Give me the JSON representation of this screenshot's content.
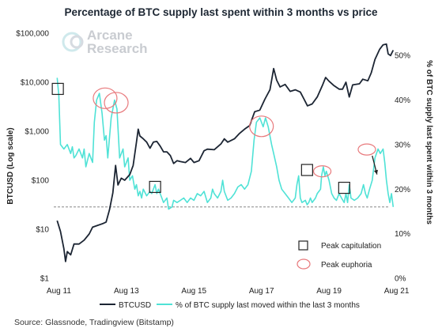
{
  "chart_data": {
    "type": "line",
    "title": "Percentage of BTC supply last spent within 3 months vs price",
    "brand": [
      "Arcane",
      "Research"
    ],
    "source": "Source: Glassnode, Tradingview (Bitstamp)",
    "y_left": {
      "label": "BTCUSD (Log scale)",
      "scale": "log",
      "range": [
        1,
        100000
      ],
      "ticks": [
        1,
        10,
        100,
        1000,
        10000,
        100000
      ],
      "tick_labels": [
        "$1",
        "$10",
        "$100",
        "$1,000",
        "$10,000",
        "$100,000"
      ]
    },
    "y_right": {
      "label": "% of BTC supply last spent within 3 months",
      "range": [
        0,
        55
      ],
      "ticks": [
        0,
        10,
        20,
        30,
        40,
        50
      ],
      "tick_labels": [
        "0%",
        "10%",
        "20%",
        "30%",
        "40%",
        "50%"
      ]
    },
    "x_axis": {
      "range": [
        2011.45,
        2021.4
      ],
      "ticks": [
        2011.6,
        2013.6,
        2015.6,
        2017.6,
        2019.6,
        2021.6
      ],
      "tick_labels": [
        "Aug 11",
        "Aug 13",
        "Aug 15",
        "Aug 17",
        "Aug 19",
        "Aug 21"
      ]
    },
    "grid": false,
    "legend_position": "bottom",
    "series": [
      {
        "name": "BTCUSD",
        "axis": "left",
        "color": "#1c2533",
        "points": [
          [
            2011.55,
            15
          ],
          [
            2011.65,
            9
          ],
          [
            2011.75,
            4
          ],
          [
            2011.8,
            2.2
          ],
          [
            2011.85,
            3.5
          ],
          [
            2011.95,
            3
          ],
          [
            2012.05,
            5
          ],
          [
            2012.2,
            5
          ],
          [
            2012.35,
            6
          ],
          [
            2012.5,
            8
          ],
          [
            2012.6,
            11
          ],
          [
            2012.75,
            12
          ],
          [
            2012.9,
            13
          ],
          [
            2013.0,
            14
          ],
          [
            2013.1,
            25
          ],
          [
            2013.2,
            55
          ],
          [
            2013.28,
            200
          ],
          [
            2013.35,
            80
          ],
          [
            2013.45,
            110
          ],
          [
            2013.55,
            100
          ],
          [
            2013.7,
            130
          ],
          [
            2013.8,
            200
          ],
          [
            2013.9,
            600
          ],
          [
            2013.95,
            1100
          ],
          [
            2014.0,
            800
          ],
          [
            2014.1,
            700
          ],
          [
            2014.2,
            600
          ],
          [
            2014.3,
            450
          ],
          [
            2014.4,
            600
          ],
          [
            2014.5,
            620
          ],
          [
            2014.6,
            500
          ],
          [
            2014.7,
            380
          ],
          [
            2014.8,
            380
          ],
          [
            2014.9,
            320
          ],
          [
            2015.0,
            220
          ],
          [
            2015.1,
            250
          ],
          [
            2015.2,
            240
          ],
          [
            2015.35,
            230
          ],
          [
            2015.5,
            280
          ],
          [
            2015.6,
            230
          ],
          [
            2015.75,
            250
          ],
          [
            2015.9,
            400
          ],
          [
            2016.0,
            430
          ],
          [
            2016.2,
            420
          ],
          [
            2016.4,
            550
          ],
          [
            2016.5,
            700
          ],
          [
            2016.6,
            600
          ],
          [
            2016.8,
            700
          ],
          [
            2016.95,
            900
          ],
          [
            2017.1,
            1100
          ],
          [
            2017.25,
            1300
          ],
          [
            2017.4,
            2500
          ],
          [
            2017.55,
            2700
          ],
          [
            2017.7,
            4500
          ],
          [
            2017.85,
            7000
          ],
          [
            2017.96,
            19000
          ],
          [
            2018.05,
            11000
          ],
          [
            2018.15,
            8000
          ],
          [
            2018.3,
            9000
          ],
          [
            2018.45,
            6500
          ],
          [
            2018.6,
            7000
          ],
          [
            2018.75,
            6300
          ],
          [
            2018.9,
            4000
          ],
          [
            2018.96,
            3300
          ],
          [
            2019.1,
            3600
          ],
          [
            2019.25,
            5000
          ],
          [
            2019.4,
            8500
          ],
          [
            2019.5,
            12500
          ],
          [
            2019.6,
            10500
          ],
          [
            2019.75,
            8500
          ],
          [
            2019.9,
            7200
          ],
          [
            2020.0,
            7200
          ],
          [
            2020.1,
            10000
          ],
          [
            2020.2,
            5000
          ],
          [
            2020.3,
            8800
          ],
          [
            2020.5,
            9300
          ],
          [
            2020.6,
            11500
          ],
          [
            2020.75,
            10700
          ],
          [
            2020.85,
            15500
          ],
          [
            2020.96,
            29000
          ],
          [
            2021.1,
            47000
          ],
          [
            2021.2,
            58000
          ],
          [
            2021.3,
            60000
          ],
          [
            2021.35,
            38000
          ],
          [
            2021.42,
            35000
          ],
          [
            2021.5,
            45000
          ]
        ]
      },
      {
        "name": "% of BTC supply last moved within the last 3 months",
        "axis": "right",
        "color": "#4fe2d6",
        "points": [
          [
            2011.55,
            45
          ],
          [
            2011.6,
            41
          ],
          [
            2011.65,
            30
          ],
          [
            2011.75,
            29
          ],
          [
            2011.85,
            30
          ],
          [
            2011.95,
            28
          ],
          [
            2012.0,
            29.5
          ],
          [
            2012.05,
            27
          ],
          [
            2012.1,
            27.5
          ],
          [
            2012.2,
            29
          ],
          [
            2012.3,
            27
          ],
          [
            2012.35,
            29
          ],
          [
            2012.4,
            25
          ],
          [
            2012.5,
            28
          ],
          [
            2012.6,
            26
          ],
          [
            2012.65,
            35
          ],
          [
            2012.72,
            40
          ],
          [
            2012.8,
            41.5
          ],
          [
            2012.88,
            37
          ],
          [
            2012.95,
            31
          ],
          [
            2013.0,
            32
          ],
          [
            2013.05,
            27
          ],
          [
            2013.15,
            36
          ],
          [
            2013.25,
            40
          ],
          [
            2013.32,
            38
          ],
          [
            2013.4,
            27
          ],
          [
            2013.5,
            29
          ],
          [
            2013.55,
            25
          ],
          [
            2013.65,
            27
          ],
          [
            2013.7,
            22
          ],
          [
            2013.78,
            23
          ],
          [
            2013.85,
            20
          ],
          [
            2013.9,
            21
          ],
          [
            2013.95,
            18.5
          ],
          [
            2014.0,
            19.5
          ],
          [
            2014.05,
            18
          ],
          [
            2014.1,
            20
          ],
          [
            2014.2,
            18.5
          ],
          [
            2014.3,
            19.5
          ],
          [
            2014.35,
            19
          ],
          [
            2014.45,
            21
          ],
          [
            2014.5,
            19
          ],
          [
            2014.55,
            20
          ],
          [
            2014.65,
            18
          ],
          [
            2014.7,
            17
          ],
          [
            2014.8,
            18
          ],
          [
            2014.85,
            15.5
          ],
          [
            2014.95,
            16
          ],
          [
            2015.0,
            17.5
          ],
          [
            2015.1,
            17
          ],
          [
            2015.2,
            17.5
          ],
          [
            2015.3,
            18
          ],
          [
            2015.4,
            17
          ],
          [
            2015.5,
            18
          ],
          [
            2015.6,
            17.5
          ],
          [
            2015.7,
            19
          ],
          [
            2015.8,
            18.5
          ],
          [
            2015.9,
            19.5
          ],
          [
            2016.0,
            17
          ],
          [
            2016.1,
            18
          ],
          [
            2016.15,
            20
          ],
          [
            2016.2,
            19
          ],
          [
            2016.3,
            18
          ],
          [
            2016.4,
            19.5
          ],
          [
            2016.45,
            22
          ],
          [
            2016.5,
            19.5
          ],
          [
            2016.6,
            17.5
          ],
          [
            2016.7,
            18
          ],
          [
            2016.8,
            19
          ],
          [
            2016.9,
            20.5
          ],
          [
            2017.0,
            21
          ],
          [
            2017.1,
            20
          ],
          [
            2017.2,
            21
          ],
          [
            2017.3,
            24
          ],
          [
            2017.38,
            31
          ],
          [
            2017.45,
            35
          ],
          [
            2017.55,
            36
          ],
          [
            2017.65,
            34
          ],
          [
            2017.72,
            36
          ],
          [
            2017.8,
            34
          ],
          [
            2017.9,
            30
          ],
          [
            2017.96,
            28
          ],
          [
            2018.05,
            25
          ],
          [
            2018.12,
            22
          ],
          [
            2018.2,
            20
          ],
          [
            2018.3,
            19
          ],
          [
            2018.4,
            18
          ],
          [
            2018.5,
            17
          ],
          [
            2018.6,
            18
          ],
          [
            2018.65,
            21
          ],
          [
            2018.7,
            23
          ],
          [
            2018.75,
            18
          ],
          [
            2018.8,
            17
          ],
          [
            2018.9,
            17.5
          ],
          [
            2018.95,
            16.5
          ],
          [
            2019.0,
            17
          ],
          [
            2019.05,
            18
          ],
          [
            2019.1,
            17
          ],
          [
            2019.15,
            17.5
          ],
          [
            2019.2,
            18
          ],
          [
            2019.25,
            19
          ],
          [
            2019.3,
            19.5
          ],
          [
            2019.35,
            20
          ],
          [
            2019.38,
            23
          ],
          [
            2019.43,
            25
          ],
          [
            2019.48,
            23
          ],
          [
            2019.52,
            24
          ],
          [
            2019.6,
            22
          ],
          [
            2019.68,
            19
          ],
          [
            2019.75,
            18
          ],
          [
            2019.82,
            17.5
          ],
          [
            2019.9,
            19
          ],
          [
            2019.97,
            18
          ],
          [
            2020.05,
            17
          ],
          [
            2020.1,
            19
          ],
          [
            2020.15,
            17
          ],
          [
            2020.2,
            21
          ],
          [
            2020.25,
            18
          ],
          [
            2020.35,
            17.5
          ],
          [
            2020.45,
            18
          ],
          [
            2020.55,
            19
          ],
          [
            2020.62,
            21
          ],
          [
            2020.68,
            19
          ],
          [
            2020.73,
            18
          ],
          [
            2020.8,
            20
          ],
          [
            2020.88,
            22
          ],
          [
            2020.96,
            27
          ],
          [
            2021.05,
            29
          ],
          [
            2021.12,
            28
          ],
          [
            2021.2,
            29
          ],
          [
            2021.25,
            26
          ],
          [
            2021.3,
            22
          ],
          [
            2021.35,
            19
          ],
          [
            2021.4,
            17
          ],
          [
            2021.45,
            19
          ],
          [
            2021.5,
            16
          ]
        ]
      }
    ],
    "reference_line": {
      "axis": "right",
      "value": 16,
      "style": "dashed"
    },
    "annotations": {
      "peak_capitulation": [
        [
          2011.57,
          42.5
        ],
        [
          2014.45,
          20.5
        ],
        [
          2018.95,
          24.3
        ],
        [
          2020.05,
          20.3
        ]
      ],
      "peak_euphoria": [
        [
          2012.97,
          40.4
        ],
        [
          2013.3,
          39.4
        ],
        [
          2017.6,
          34.1
        ],
        [
          2019.4,
          24
        ],
        [
          2020.72,
          28.9
        ]
      ],
      "arrow": {
        "from": [
          2020.88,
          27.5
        ],
        "to": [
          2021.02,
          23.3
        ]
      }
    },
    "legend": {
      "btcusd": "BTCUSD",
      "supply_pct": "% of BTC supply last moved within the last 3 months",
      "peak_capitulation": "Peak capitulation",
      "peak_euphoria": "Peak euphoria"
    }
  }
}
